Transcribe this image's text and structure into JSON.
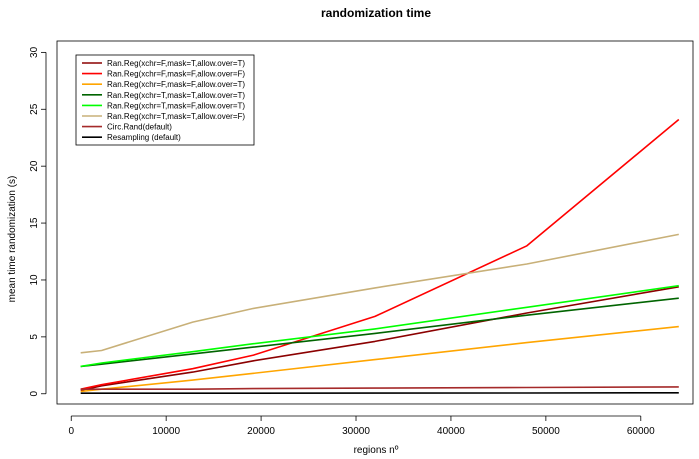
{
  "chart_data": {
    "type": "line",
    "title": "randomization time",
    "xlabel": "regions nº",
    "ylabel": "mean time randomization (s)",
    "xlim": [
      -1500,
      65500
    ],
    "ylim": [
      -0.9,
      31
    ],
    "xticks": [
      0,
      10000,
      20000,
      30000,
      40000,
      50000,
      60000
    ],
    "yticks": [
      0,
      5,
      10,
      15,
      20,
      25,
      30
    ],
    "grid": false,
    "legend_position": "top-left",
    "series": [
      {
        "name": "Ran.Reg(xchr=F,mask=T,allow.over=T)",
        "color": "#8b0000",
        "points": [
          [
            1000,
            0.3
          ],
          [
            3200,
            0.7
          ],
          [
            12800,
            1.9
          ],
          [
            19200,
            2.9
          ],
          [
            32000,
            4.6
          ],
          [
            48000,
            7.1
          ],
          [
            64000,
            9.4
          ]
        ]
      },
      {
        "name": "Ran.Reg(xchr=F,mask=F,allow.over=F)",
        "color": "#ff0000",
        "points": [
          [
            1000,
            0.4
          ],
          [
            3200,
            0.8
          ],
          [
            12800,
            2.2
          ],
          [
            19200,
            3.4
          ],
          [
            32000,
            6.8
          ],
          [
            48000,
            13.0
          ],
          [
            64000,
            24.1
          ]
        ]
      },
      {
        "name": "Ran.Reg(xchr=F,mask=F,allow.over=T)",
        "color": "#ffa500",
        "points": [
          [
            1000,
            0.2
          ],
          [
            3200,
            0.4
          ],
          [
            12800,
            1.2
          ],
          [
            19200,
            1.8
          ],
          [
            32000,
            3.0
          ],
          [
            48000,
            4.5
          ],
          [
            64000,
            5.9
          ]
        ]
      },
      {
        "name": "Ran.Reg(xchr=T,mask=T,allow.over=T)",
        "color": "#006400",
        "points": [
          [
            1000,
            2.4
          ],
          [
            3200,
            2.6
          ],
          [
            12800,
            3.5
          ],
          [
            19200,
            4.1
          ],
          [
            32000,
            5.3
          ],
          [
            48000,
            6.9
          ],
          [
            64000,
            8.4
          ]
        ]
      },
      {
        "name": "Ran.Reg(xchr=T,mask=F,allow.over=T)",
        "color": "#00ff00",
        "points": [
          [
            1000,
            2.4
          ],
          [
            3200,
            2.7
          ],
          [
            12800,
            3.7
          ],
          [
            19200,
            4.4
          ],
          [
            32000,
            5.7
          ],
          [
            48000,
            7.6
          ],
          [
            64000,
            9.5
          ]
        ]
      },
      {
        "name": "Ran.Reg(xchr=T,mask=T,allow.over=F)",
        "color": "#c8b078",
        "points": [
          [
            1000,
            3.6
          ],
          [
            3200,
            3.8
          ],
          [
            12800,
            6.3
          ],
          [
            19200,
            7.5
          ],
          [
            32000,
            9.3
          ],
          [
            48000,
            11.4
          ],
          [
            64000,
            14.0
          ]
        ]
      },
      {
        "name": "Circ.Rand(default)",
        "color": "#a52a2a",
        "points": [
          [
            1000,
            0.4
          ],
          [
            3200,
            0.4
          ],
          [
            12800,
            0.4
          ],
          [
            19200,
            0.45
          ],
          [
            32000,
            0.5
          ],
          [
            48000,
            0.55
          ],
          [
            64000,
            0.6
          ]
        ]
      },
      {
        "name": "Resampling (default)",
        "color": "#000000",
        "points": [
          [
            1000,
            0.05
          ],
          [
            3200,
            0.05
          ],
          [
            12800,
            0.05
          ],
          [
            19200,
            0.05
          ],
          [
            32000,
            0.06
          ],
          [
            48000,
            0.07
          ],
          [
            64000,
            0.08
          ]
        ]
      }
    ]
  }
}
